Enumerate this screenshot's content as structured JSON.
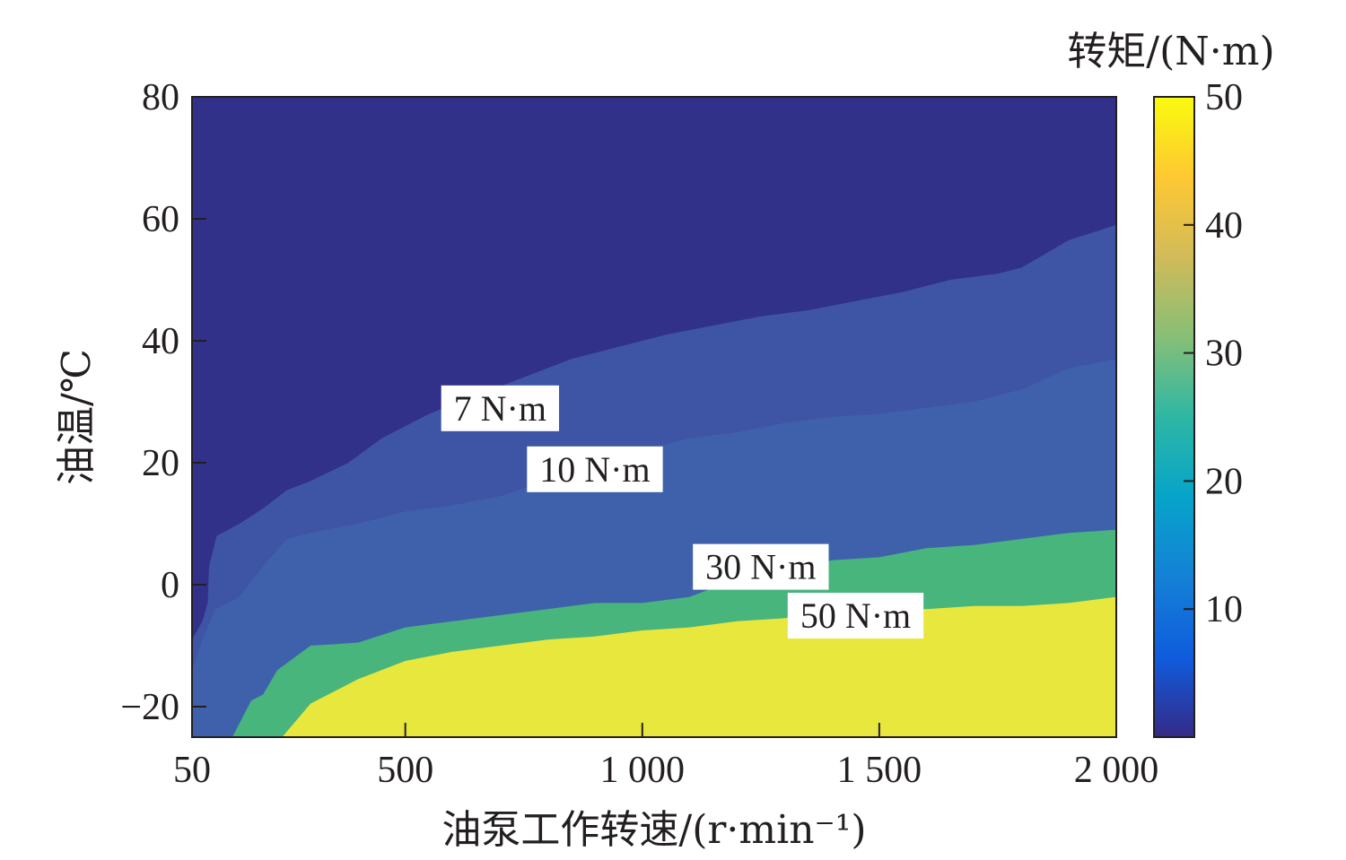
{
  "chart_data": {
    "type": "contourf",
    "xlabel": "油泵工作转速/(r·min⁻¹)",
    "ylabel": "油温/℃",
    "colorbar_label": "转矩/(N·m)",
    "xlim": [
      50,
      2000
    ],
    "ylim": [
      -25,
      80
    ],
    "x_tick_values": [
      50,
      500,
      1000,
      1500,
      2000
    ],
    "x_tick_labels": [
      "50",
      "500",
      "1 000",
      "1 500",
      "2 000"
    ],
    "y_tick_values": [
      -20,
      0,
      20,
      40,
      60,
      80
    ],
    "y_tick_labels": [
      "−20",
      "0",
      "20",
      "40",
      "60",
      "80"
    ],
    "colorbar_lim": [
      0,
      50
    ],
    "colorbar_tick_values": [
      10,
      20,
      30,
      40,
      50
    ],
    "colorbar_tick_labels": [
      "10",
      "20",
      "30",
      "40",
      "50"
    ],
    "colormap": [
      "#352a87",
      "#0f5cdd",
      "#1481d6",
      "#06a4ca",
      "#2eb7a4",
      "#87bf77",
      "#d1bb59",
      "#fec832",
      "#f9fb0e"
    ],
    "levels": [
      {
        "name": "7 N·m",
        "value": 7,
        "color": "#3e55a6",
        "label": "7 N·m",
        "label_at": [
          700,
          29
        ],
        "boundary": [
          [
            50,
            -9
          ],
          [
            72,
            -6
          ],
          [
            83,
            -3
          ],
          [
            86,
            3
          ],
          [
            102,
            8
          ],
          [
            150,
            10
          ],
          [
            200,
            12.5
          ],
          [
            250,
            15.5
          ],
          [
            300,
            17
          ],
          [
            380,
            20
          ],
          [
            450,
            24
          ],
          [
            550,
            28
          ],
          [
            650,
            31
          ],
          [
            750,
            34
          ],
          [
            850,
            37
          ],
          [
            950,
            39
          ],
          [
            1050,
            41
          ],
          [
            1150,
            42.5
          ],
          [
            1250,
            44
          ],
          [
            1350,
            45
          ],
          [
            1450,
            46.5
          ],
          [
            1550,
            48
          ],
          [
            1650,
            50
          ],
          [
            1750,
            51
          ],
          [
            1800,
            52
          ],
          [
            1900,
            56.5
          ],
          [
            2000,
            59
          ]
        ]
      },
      {
        "name": "10 N·m",
        "value": 10,
        "color": "#3f61ac",
        "label": "10 N·m",
        "label_at": [
          900,
          19
        ],
        "boundary": [
          [
            50,
            -14
          ],
          [
            72,
            -9
          ],
          [
            100,
            -4
          ],
          [
            150,
            -2
          ],
          [
            200,
            3
          ],
          [
            250,
            7.5
          ],
          [
            300,
            8.5
          ],
          [
            400,
            10
          ],
          [
            500,
            12
          ],
          [
            600,
            13
          ],
          [
            700,
            14.5
          ],
          [
            800,
            17
          ],
          [
            900,
            19.5
          ],
          [
            1000,
            22
          ],
          [
            1100,
            24
          ],
          [
            1200,
            25
          ],
          [
            1300,
            26.5
          ],
          [
            1400,
            27.5
          ],
          [
            1500,
            28
          ],
          [
            1600,
            29
          ],
          [
            1700,
            30
          ],
          [
            1800,
            32
          ],
          [
            1900,
            35.5
          ],
          [
            2000,
            37
          ]
        ]
      },
      {
        "name": "30 N·m",
        "value": 30,
        "color": "#48b57d",
        "label": "30 N·m",
        "label_at": [
          1250,
          3
        ],
        "boundary": [
          [
            135,
            -25
          ],
          [
            175,
            -19
          ],
          [
            200,
            -18
          ],
          [
            230,
            -14
          ],
          [
            300,
            -10
          ],
          [
            400,
            -9.5
          ],
          [
            500,
            -7
          ],
          [
            600,
            -6
          ],
          [
            700,
            -5
          ],
          [
            800,
            -4
          ],
          [
            900,
            -3
          ],
          [
            1000,
            -3
          ],
          [
            1100,
            -2
          ],
          [
            1200,
            1
          ],
          [
            1300,
            2
          ],
          [
            1400,
            4
          ],
          [
            1500,
            4.5
          ],
          [
            1600,
            6
          ],
          [
            1700,
            6.5
          ],
          [
            1800,
            7.5
          ],
          [
            1900,
            8.5
          ],
          [
            2000,
            9
          ]
        ]
      },
      {
        "name": "50 N·m",
        "value": 50,
        "color": "#e8e73e",
        "label": "50 N·m",
        "label_at": [
          1450,
          -5
        ],
        "boundary": [
          [
            240,
            -25
          ],
          [
            300,
            -19.5
          ],
          [
            400,
            -15.5
          ],
          [
            500,
            -12.5
          ],
          [
            600,
            -11
          ],
          [
            700,
            -10
          ],
          [
            800,
            -9
          ],
          [
            900,
            -8.5
          ],
          [
            1000,
            -7.5
          ],
          [
            1100,
            -7
          ],
          [
            1200,
            -6
          ],
          [
            1300,
            -5.5
          ],
          [
            1400,
            -4.5
          ],
          [
            1500,
            -4
          ],
          [
            1600,
            -4
          ],
          [
            1700,
            -3.5
          ],
          [
            1800,
            -3.5
          ],
          [
            1900,
            -3
          ],
          [
            2000,
            -2
          ]
        ]
      }
    ],
    "base_color": "#313189"
  }
}
